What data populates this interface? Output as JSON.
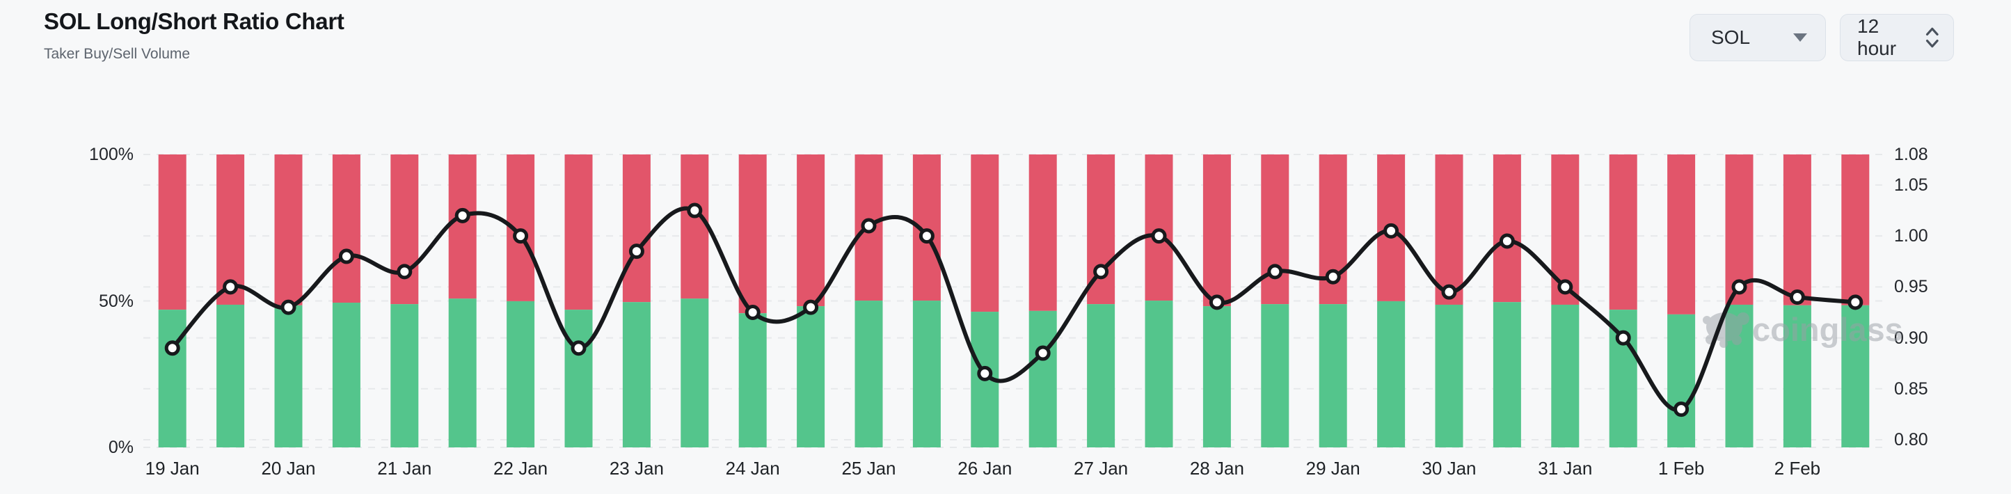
{
  "header": {
    "title": "SOL Long/Short Ratio Chart",
    "subtitle": "Taker Buy/Sell Volume"
  },
  "controls": {
    "symbol": {
      "value": "SOL"
    },
    "interval": {
      "value": "12 hour"
    }
  },
  "watermark": {
    "text": "coinglass"
  },
  "colors": {
    "background": "#f7f8f9",
    "buy_green": "#54c58c",
    "sell_red": "#e2556a",
    "ratio_line": "#17191c",
    "marker_fill": "#ffffff",
    "gridline": "#e7e9eb",
    "watermark_gray": "#9aa0a6"
  },
  "chart_data": {
    "type": "bar",
    "subtype": "stacked-percent-bars-with-ratio-line",
    "title": "SOL Long/Short Ratio Chart",
    "subtitle": "Taker Buy/Sell Volume",
    "interval": "12 hour",
    "bars_per_day": 2,
    "stack_total": 100,
    "grid": "dashed-horizontal",
    "x_labels": [
      "19 Jan",
      "20 Jan",
      "21 Jan",
      "22 Jan",
      "23 Jan",
      "24 Jan",
      "25 Jan",
      "26 Jan",
      "27 Jan",
      "28 Jan",
      "29 Jan",
      "30 Jan",
      "31 Jan",
      "1 Feb",
      "2 Feb"
    ],
    "left_axis": {
      "min": 0,
      "max": 100,
      "tick_labels": [
        "100%",
        "50%",
        "0%"
      ],
      "tick_values": [
        100,
        50,
        0
      ]
    },
    "right_axis": {
      "top": 1.08,
      "bottom": 0.7925,
      "tick_labels": [
        "1.08",
        "1.05",
        "1.00",
        "0.95",
        "0.90",
        "0.85",
        "0.80"
      ],
      "tick_values": [
        1.08,
        1.05,
        1.0,
        0.95,
        0.9,
        0.85,
        0.8
      ]
    },
    "series": [
      {
        "name": "Taker Buy Volume %",
        "type": "bar-bottom",
        "color": "#54c58c",
        "values": [
          47.0,
          48.7,
          48.5,
          49.4,
          48.9,
          50.8,
          49.9,
          47.0,
          49.6,
          50.8,
          45.8,
          48.2,
          50.1,
          50.1,
          46.3,
          46.6,
          48.9,
          50.1,
          48.2,
          48.9,
          48.9,
          49.9,
          48.7,
          49.6,
          48.7,
          47.0,
          45.4,
          48.7,
          48.5,
          48.5
        ]
      },
      {
        "name": "Taker Sell Volume %",
        "type": "bar-top",
        "color": "#e2556a",
        "values": [
          53.0,
          51.3,
          51.5,
          50.6,
          51.1,
          49.2,
          50.1,
          53.0,
          50.4,
          49.2,
          54.2,
          51.8,
          49.9,
          49.9,
          53.7,
          53.4,
          51.1,
          49.9,
          51.8,
          51.1,
          51.1,
          50.1,
          51.3,
          50.4,
          51.3,
          53.0,
          54.6,
          51.3,
          51.5,
          51.5
        ]
      },
      {
        "name": "Long/Short Ratio",
        "type": "line",
        "color": "#17191c",
        "marker": "white-circle",
        "values": [
          0.89,
          0.95,
          0.93,
          0.98,
          0.965,
          1.02,
          1.0,
          0.89,
          0.985,
          1.025,
          0.925,
          0.93,
          1.01,
          1.0,
          0.865,
          0.885,
          0.965,
          1.0,
          0.935,
          0.965,
          0.96,
          1.005,
          0.945,
          0.995,
          0.95,
          0.9,
          0.83,
          0.95,
          0.94,
          0.935
        ]
      }
    ]
  }
}
